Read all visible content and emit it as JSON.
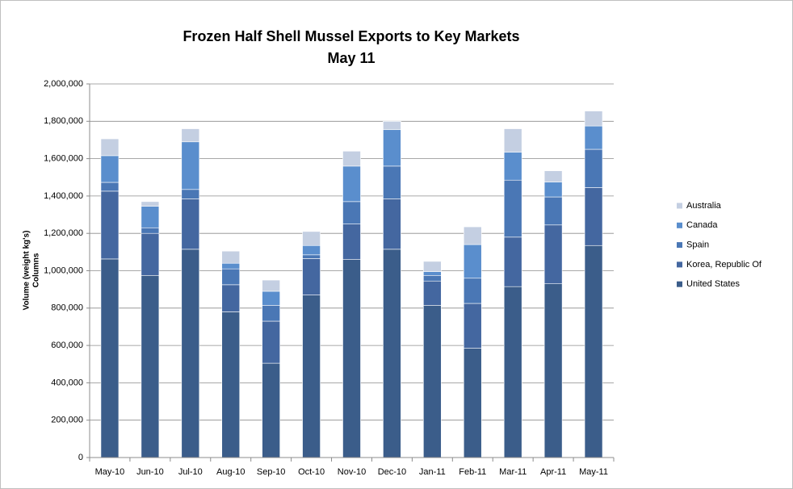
{
  "chart_data": {
    "type": "stacked-bar",
    "title": "Frozen Half Shell Mussel Exports to Key Markets",
    "subtitle": "May 11",
    "y_label": "Volume (weight kg's)",
    "y_label_2": "Columns",
    "categories": [
      "May-10",
      "Jun-10",
      "Jul-10",
      "Aug-10",
      "Sep-10",
      "Oct-10",
      "Nov-10",
      "Dec-10",
      "Jan-11",
      "Feb-11",
      "Mar-11",
      "Apr-11",
      "May-11"
    ],
    "series": [
      {
        "name": "United States",
        "color": "#3b5d8a",
        "values": [
          1063000,
          975000,
          1115000,
          780000,
          505000,
          870000,
          1060000,
          1115000,
          815000,
          585000,
          915000,
          930000,
          1135000
        ]
      },
      {
        "name": "Korea, Republic Of",
        "color": "#4467a0",
        "values": [
          363000,
          225000,
          270000,
          145000,
          225000,
          195000,
          190000,
          270000,
          130000,
          240000,
          265000,
          315000,
          310000
        ]
      },
      {
        "name": "Spain",
        "color": "#4a77b5",
        "values": [
          47000,
          30000,
          50000,
          85000,
          85000,
          20000,
          120000,
          175000,
          30000,
          135000,
          305000,
          150000,
          205000
        ]
      },
      {
        "name": "Canada",
        "color": "#5a8ecd",
        "values": [
          143000,
          115000,
          255000,
          30000,
          75000,
          50000,
          190000,
          195000,
          20000,
          180000,
          150000,
          80000,
          125000
        ]
      },
      {
        "name": "Australia",
        "color": "#c4cfe2",
        "values": [
          90000,
          25000,
          70000,
          65000,
          60000,
          75000,
          80000,
          45000,
          55000,
          95000,
          125000,
          60000,
          80000
        ]
      }
    ],
    "ylim": [
      0,
      2000000
    ],
    "yticks": [
      0,
      {
        "value": 200000,
        "label": "200,000"
      },
      {
        "value": 400000,
        "label": "400,000"
      },
      {
        "value": 600000,
        "label": "600,000"
      },
      {
        "value": 800000,
        "label": "800,000"
      },
      {
        "value": 1000000,
        "label": "1,000,000"
      },
      {
        "value": 1200000,
        "label": "1,200,000"
      },
      {
        "value": 1400000,
        "label": "1,400,000"
      },
      {
        "value": 1600000,
        "label": "1,600,000"
      },
      {
        "value": 1800000,
        "label": "1,800,000"
      },
      {
        "value": 2000000,
        "label": "2,000,000"
      }
    ],
    "grid": true,
    "legend": "right"
  }
}
